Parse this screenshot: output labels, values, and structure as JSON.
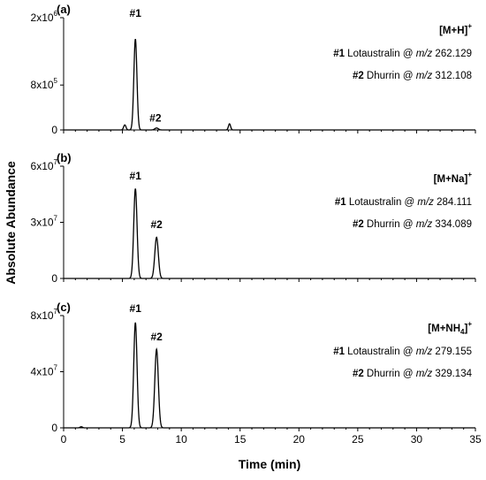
{
  "chart_data": {
    "x_axis": {
      "label": "Time (min)",
      "min": 0,
      "max": 35,
      "ticks": [
        0,
        5,
        10,
        15,
        20,
        25,
        30,
        35
      ],
      "tick_labels": [
        "0",
        "5",
        "10",
        "15",
        "20",
        "25",
        "30",
        "35"
      ]
    },
    "y_axis_label": "Absolute Abundance",
    "panels": [
      {
        "type": "line",
        "panel_label": "(a)",
        "ylim": [
          0,
          2000000
        ],
        "y_ticks": [
          {
            "value": 0,
            "base": "0",
            "exp": ""
          },
          {
            "value": 800000,
            "base": "8x10",
            "exp": "5"
          },
          {
            "value": 2000000,
            "base": "2x10",
            "exp": "6"
          }
        ],
        "ion": {
          "base": "[M+H]",
          "sub": "",
          "tail": "",
          "sup": "+"
        },
        "compounds": [
          {
            "tag": "#1",
            "name": " Lotaustralin @ ",
            "mz_label": "m/z",
            "mz": " 262.129"
          },
          {
            "tag": "#2",
            "name": " Dhurrin @ ",
            "mz_label": "m/z",
            "mz": " 312.108"
          }
        ],
        "peak_labels": [
          {
            "text": "#1",
            "x": 6.1,
            "y": 1950000
          },
          {
            "text": "#2",
            "x": 7.8,
            "y": 90000
          }
        ],
        "baseline": 0,
        "peaks": [
          {
            "center": 6.1,
            "height": 1620000,
            "width": 0.13
          },
          {
            "center": 7.9,
            "height": 35000,
            "width": 0.15
          },
          {
            "center": 5.2,
            "height": 90000,
            "width": 0.1
          },
          {
            "center": 14.1,
            "height": 110000,
            "width": 0.09
          }
        ]
      },
      {
        "type": "line",
        "panel_label": "(b)",
        "ylim": [
          0,
          60000000
        ],
        "y_ticks": [
          {
            "value": 0,
            "base": "0",
            "exp": ""
          },
          {
            "value": 30000000,
            "base": "3x10",
            "exp": "7"
          },
          {
            "value": 60000000,
            "base": "6x10",
            "exp": "7"
          }
        ],
        "ion": {
          "base": "[M+Na]",
          "sub": "",
          "tail": "",
          "sup": "+"
        },
        "compounds": [
          {
            "tag": "#1",
            "name": " Lotaustralin @ ",
            "mz_label": "m/z",
            "mz": " 284.111"
          },
          {
            "tag": "#2",
            "name": " Dhurrin @ ",
            "mz_label": "m/z",
            "mz": " 334.089"
          }
        ],
        "peak_labels": [
          {
            "text": "#1",
            "x": 6.1,
            "y": 51000000
          },
          {
            "text": "#2",
            "x": 7.9,
            "y": 25000000
          }
        ],
        "baseline": 0,
        "peaks": [
          {
            "center": 6.1,
            "height": 48000000,
            "width": 0.14
          },
          {
            "center": 7.9,
            "height": 22000000,
            "width": 0.15
          }
        ]
      },
      {
        "type": "line",
        "panel_label": "(c)",
        "ylim": [
          0,
          80000000
        ],
        "y_ticks": [
          {
            "value": 0,
            "base": "0",
            "exp": ""
          },
          {
            "value": 40000000,
            "base": "4x10",
            "exp": "7"
          },
          {
            "value": 80000000,
            "base": "8x10",
            "exp": "7"
          }
        ],
        "ion": {
          "base": "[M+NH",
          "sub": "4",
          "tail": "]",
          "sup": "+"
        },
        "compounds": [
          {
            "tag": "#1",
            "name": " Lotaustralin @ ",
            "mz_label": "m/z",
            "mz": " 279.155"
          },
          {
            "tag": "#2",
            "name": " Dhurrin @ ",
            "mz_label": "m/z",
            "mz": " 329.134"
          }
        ],
        "peak_labels": [
          {
            "text": "#1",
            "x": 6.1,
            "y": 80000000
          },
          {
            "text": "#2",
            "x": 7.9,
            "y": 60000000
          }
        ],
        "baseline": 0,
        "peaks": [
          {
            "center": 6.1,
            "height": 75000000,
            "width": 0.14
          },
          {
            "center": 7.9,
            "height": 56000000,
            "width": 0.15
          },
          {
            "center": 1.5,
            "height": 800000,
            "width": 0.1
          }
        ]
      }
    ]
  }
}
